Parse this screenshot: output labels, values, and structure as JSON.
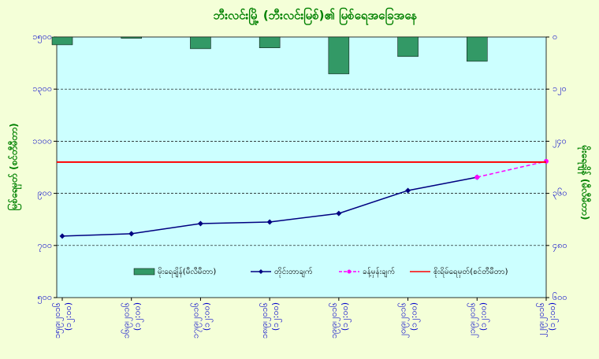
{
  "chart_data": {
    "type": "combo",
    "title": "ဘီးလင်းမြို့ (ဘီးလင်းမြစ်)၏ မြစ်ရေအခြေအနေ",
    "y_label": "မြစ်ရေမှတ် (စင်တီမီတာ)",
    "y2_label": "မိုးရေချိန် (မီလီမီတာ)",
    "categories": [
      "၁၅၊၉၊၂၀၁၆",
      "၁၆၊၉၊၂၀၁၆",
      "၁၇၊၉၊၂၀၁၆",
      "၁၈၊၉၊၂၀၁၆",
      "၁၉၊၉၊၂၀၁၆",
      "၂၀၊၉၊၂၀၁၆",
      "၂၁၊၉၊၂၀၁၆",
      "၂၂၊၉၊၂၀၁၆"
    ],
    "category_times": [
      "(၁၂:၀၀)",
      "(၁၂:၀၀)",
      "(၁၂:၀၀)",
      "(၁၂:၀၀)",
      "(၁၂:၀၀)",
      "(၁၂:၀၀)",
      "(၁၂:၀၀)",
      "(၁၂:၀၀)"
    ],
    "ylim": [
      500,
      1500
    ],
    "yticks": [
      {
        "value": 500,
        "label": "၅၀၀"
      },
      {
        "value": 700,
        "label": "၇၀၀"
      },
      {
        "value": 900,
        "label": "၉၀၀"
      },
      {
        "value": 1100,
        "label": "၁၁၀၀"
      },
      {
        "value": 1300,
        "label": "၁၃၀၀"
      },
      {
        "value": 1500,
        "label": "၁၅၀၀"
      }
    ],
    "y2lim": [
      600,
      0
    ],
    "y2ticks": [
      {
        "value": 0,
        "label": "၀"
      },
      {
        "value": 120,
        "label": "၁၂၀"
      },
      {
        "value": 240,
        "label": "၂၄၀"
      },
      {
        "value": 360,
        "label": "၃၆၀"
      },
      {
        "value": 480,
        "label": "၄၈၀"
      },
      {
        "value": 600,
        "label": "၆၀၀"
      }
    ],
    "grid": true,
    "series": [
      {
        "name": "မိုးရေချိန်(မီလီမီတာ)",
        "type": "bar",
        "axis": "y2",
        "color": "#339966",
        "values": [
          18,
          3,
          27,
          25,
          85,
          45,
          56,
          null
        ]
      },
      {
        "name": "တိုင်းတာချက်",
        "type": "line",
        "color": "#000080",
        "values": [
          736,
          745,
          784,
          790,
          823,
          911,
          962,
          null
        ]
      },
      {
        "name": "ခန့်မှန်းချက်",
        "type": "dashed",
        "color": "#ff00ff",
        "values": [
          null,
          null,
          null,
          null,
          null,
          null,
          962,
          1023
        ]
      },
      {
        "name": "စိုးရိမ်ရေမှတ်(စင်တီမီတာ)",
        "type": "hline",
        "color": "#ff0000",
        "value": 1020
      }
    ]
  }
}
